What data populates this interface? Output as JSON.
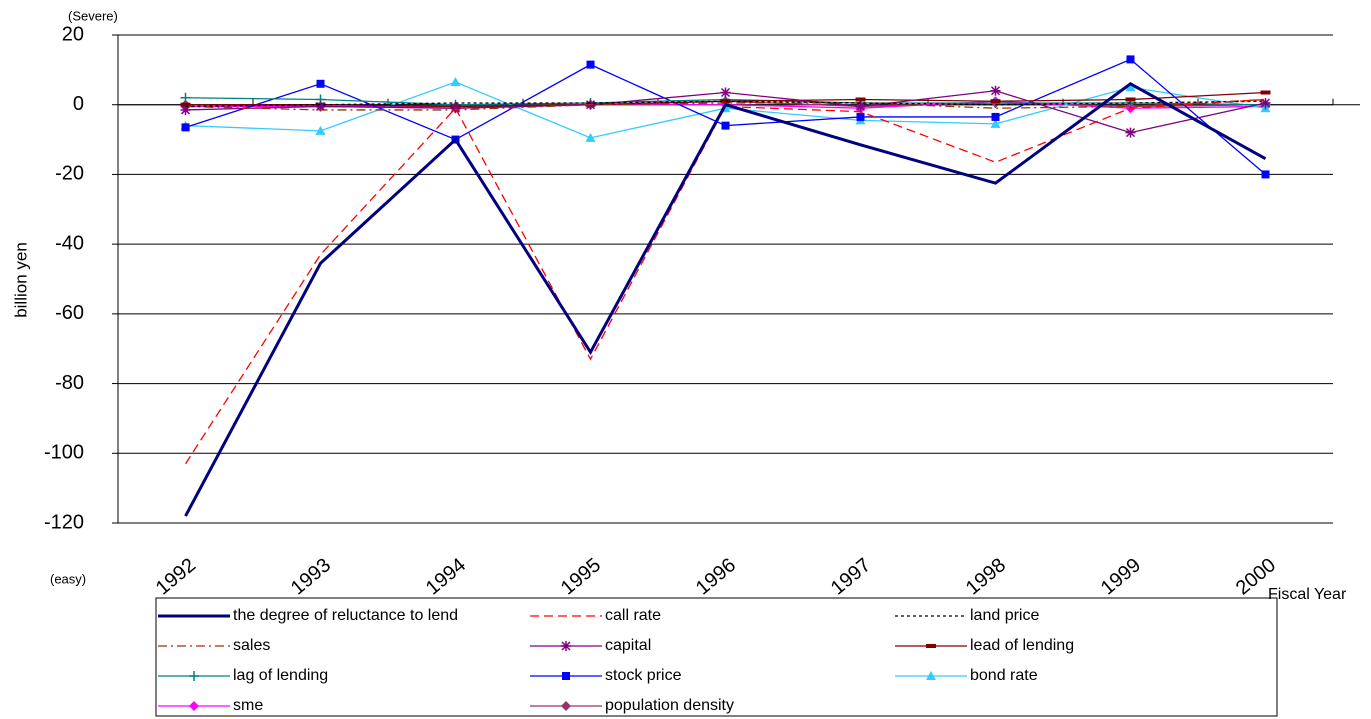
{
  "chart_data": {
    "type": "line",
    "top_note": "(Severe)",
    "bottom_note": "(easy)",
    "y_label": "billion yen",
    "x_label": "Fiscal Year",
    "categories": [
      "1992",
      "1993",
      "1994",
      "1995",
      "1996",
      "1997",
      "1998",
      "1999",
      "2000"
    ],
    "ylim": [
      -120,
      20
    ],
    "yticks": [
      20,
      0,
      -20,
      -40,
      -60,
      -80,
      -100,
      -120
    ],
    "grid": true,
    "series": [
      {
        "name": "the degree of reluctance to lend",
        "color": "#000080",
        "line_style": "solid",
        "line_width": 3,
        "values": [
          -118,
          -45.5,
          -10,
          -71,
          0,
          -11.5,
          -22.5,
          6,
          -15.5
        ]
      },
      {
        "name": "call rate",
        "color": "#ff0000",
        "line_style": "dashed",
        "values": [
          -103,
          -43,
          -1,
          -73,
          -0.5,
          -2,
          -16.5,
          -1,
          1.5
        ]
      },
      {
        "name": "land price",
        "color": "#000000",
        "line_style": "dotted",
        "values": [
          -0.5,
          0,
          0.5,
          0.5,
          1,
          0.5,
          0,
          0.5,
          1
        ]
      },
      {
        "name": "sales",
        "color": "#993300",
        "line_style": "dashdot",
        "values": [
          -0.5,
          -1.5,
          -1.5,
          0,
          0.5,
          0.5,
          -1,
          -0.5,
          1.5
        ]
      },
      {
        "name": "capital",
        "color": "#800080",
        "line_style": "solid",
        "marker": "asterisk",
        "values": [
          -1.5,
          -0.5,
          -1,
          0,
          3.5,
          -0.5,
          4,
          -8,
          0.5
        ]
      },
      {
        "name": "lead of lending",
        "color": "#800000",
        "line_style": "solid",
        "marker": "dash",
        "values": [
          0,
          0,
          -0.5,
          0,
          1,
          1.5,
          1,
          1.5,
          3.5
        ]
      },
      {
        "name": "lag of lending",
        "color": "#008080",
        "line_style": "solid",
        "marker": "plus",
        "values": [
          2,
          1.5,
          0,
          0.5,
          1.5,
          0.5,
          0.5,
          0.5,
          0
        ]
      },
      {
        "name": "stock price",
        "color": "#0000ff",
        "line_style": "solid",
        "marker": "square",
        "values": [
          -6.5,
          6,
          -10,
          11.5,
          -6,
          -3.5,
          -3.5,
          13,
          -20
        ]
      },
      {
        "name": "bond rate",
        "color": "#33ccff",
        "line_style": "solid",
        "marker": "triangle",
        "values": [
          -6,
          -7.5,
          6.5,
          -9.5,
          -1,
          -4.5,
          -5.5,
          5,
          -1
        ]
      },
      {
        "name": "sme",
        "color": "#ff00ff",
        "line_style": "solid",
        "marker": "diamond",
        "values": [
          -0.5,
          -0.5,
          -0.5,
          0,
          0,
          -1,
          1,
          -1,
          -0.5
        ]
      },
      {
        "name": "population density",
        "color": "#993366",
        "line_style": "solid",
        "marker": "diamond",
        "values": [
          0,
          -0.5,
          -1,
          0,
          1,
          -0.5,
          0.5,
          -0.5,
          0
        ]
      }
    ]
  }
}
